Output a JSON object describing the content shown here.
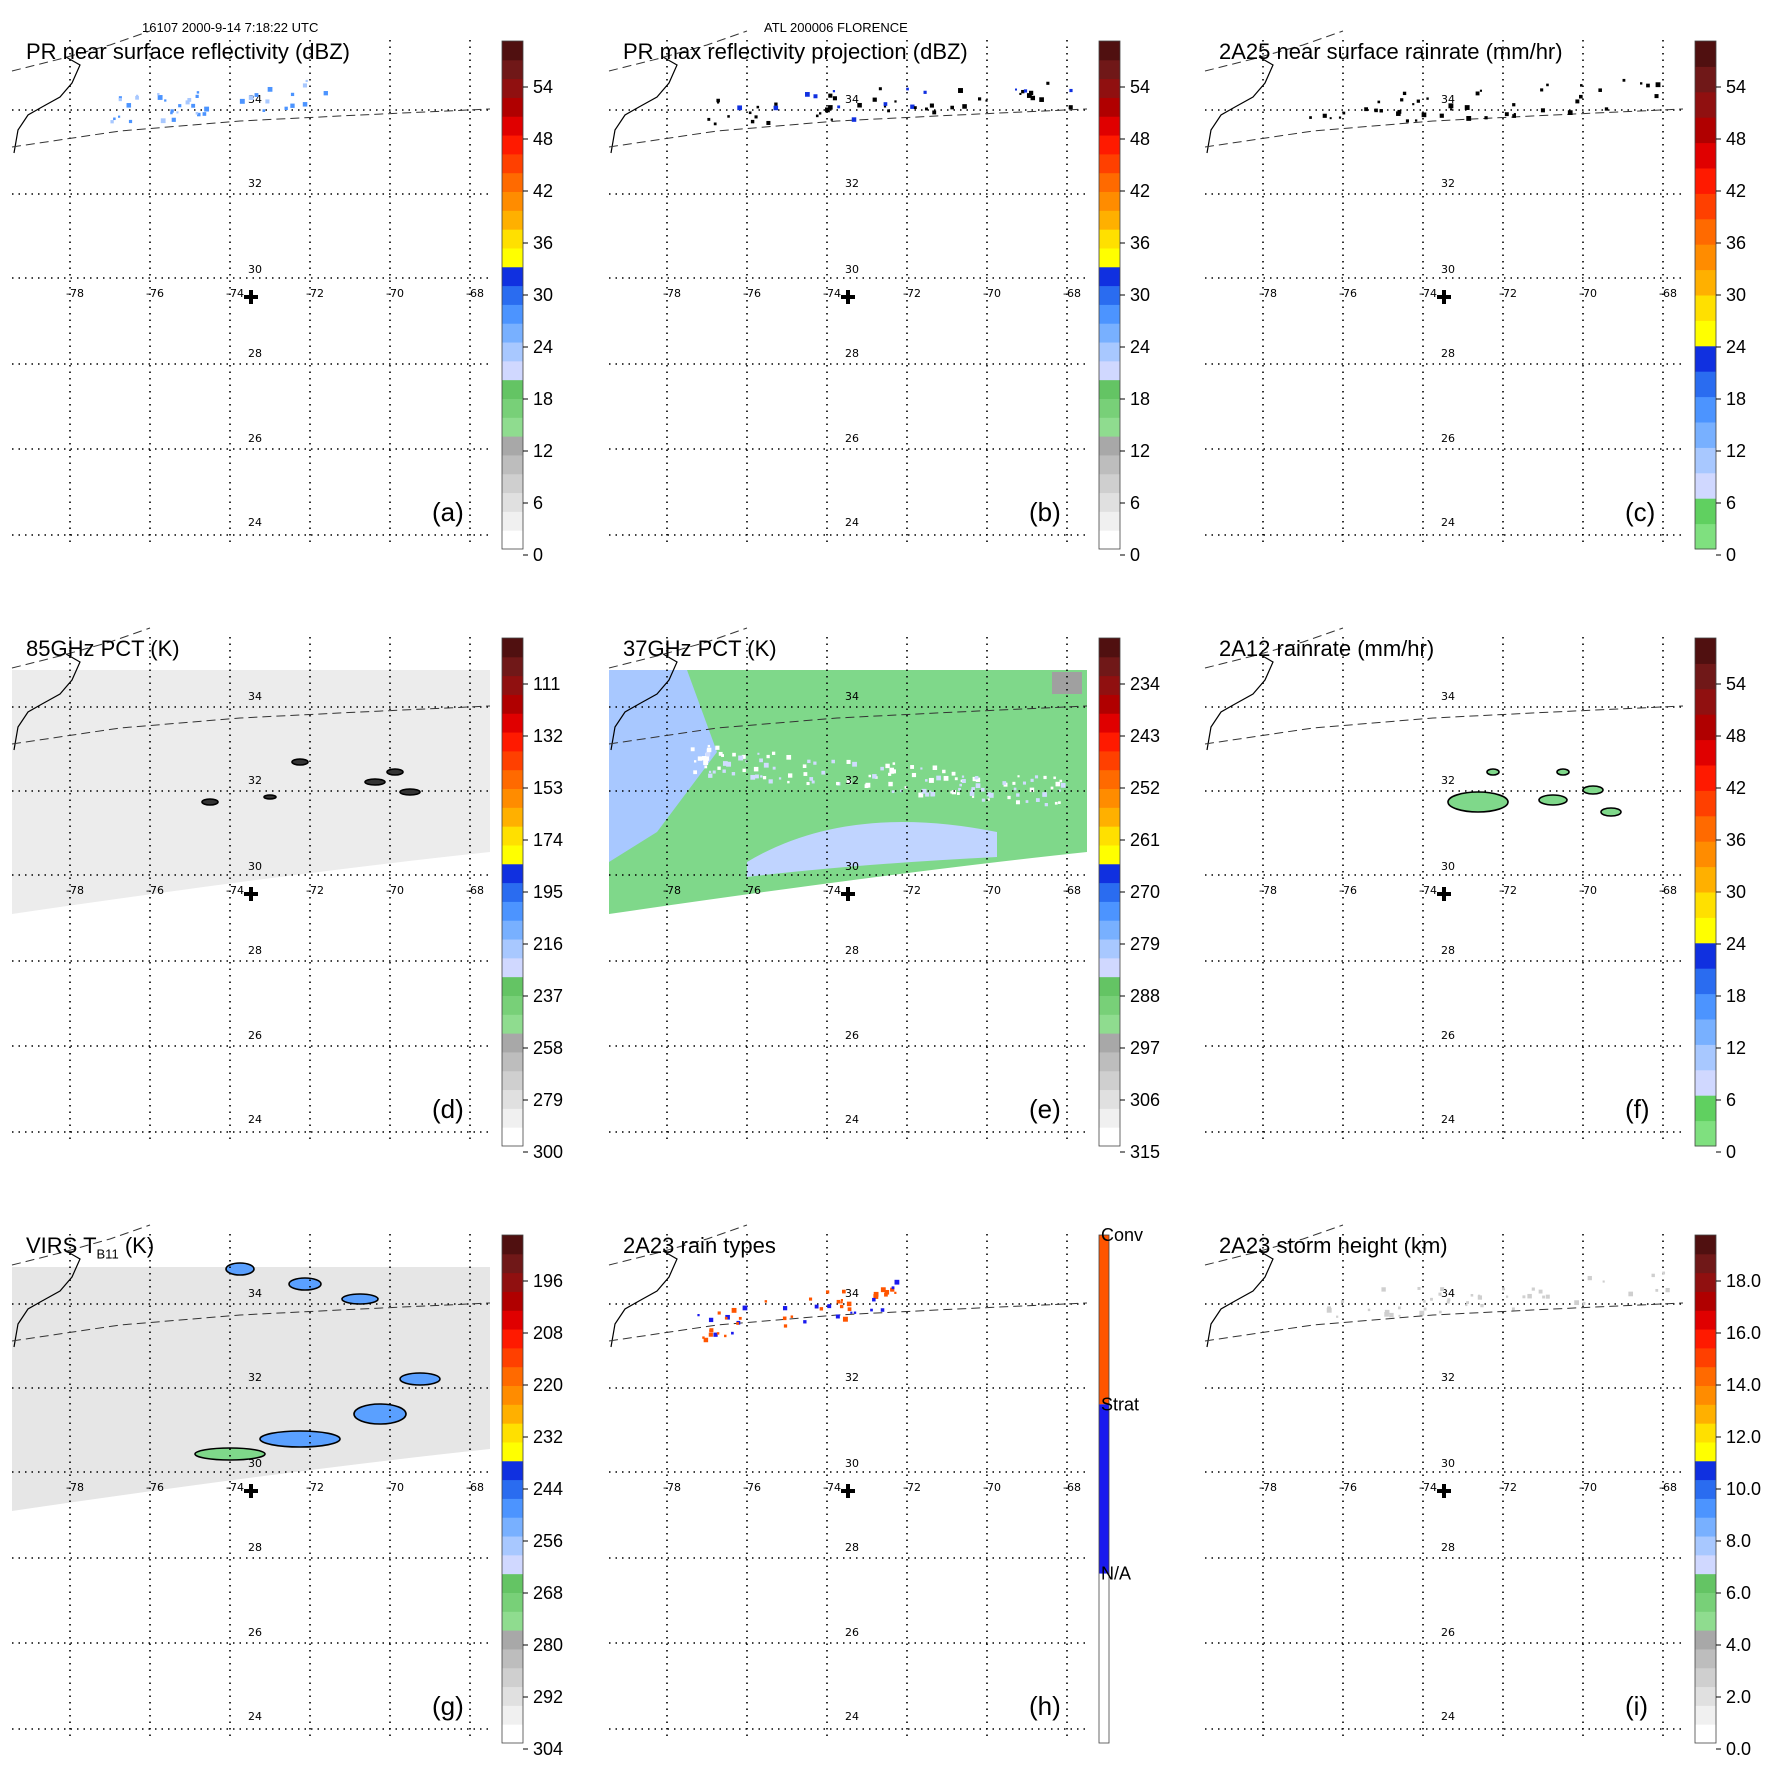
{
  "header": {
    "left": "16107 2000-9-14 7:18:22 UTC",
    "center": "ATL 200006 FLORENCE"
  },
  "map": {
    "lon_ticks": [
      "-78",
      "-76",
      "-74",
      "-72",
      "-70",
      "-68"
    ],
    "lat_ticks": [
      "34",
      "32",
      "30",
      "28",
      "26",
      "24"
    ],
    "center_marker": "plus-marker"
  },
  "chart_data": [
    {
      "type": "heatmap",
      "panel_id": "a",
      "title": "PR near surface reflectivity (dBZ)",
      "letter": "(a)",
      "colorbar_labels": [
        "54",
        "48",
        "42",
        "36",
        "30",
        "24",
        "18",
        "12",
        "6",
        "0"
      ],
      "colorbar_range": [
        0,
        60
      ]
    },
    {
      "type": "heatmap",
      "panel_id": "b",
      "title": "PR max reflectivity projection (dBZ)",
      "letter": "(b)",
      "colorbar_labels": [
        "54",
        "48",
        "42",
        "36",
        "30",
        "24",
        "18",
        "12",
        "6",
        "0"
      ],
      "colorbar_range": [
        0,
        60
      ]
    },
    {
      "type": "heatmap",
      "panel_id": "c",
      "title": "2A25 near surface rainrate (mm/hr)",
      "letter": "(c)",
      "colorbar_labels": [
        "54",
        "48",
        "42",
        "36",
        "30",
        "24",
        "18",
        "12",
        "6",
        "0"
      ],
      "colorbar_range": [
        0,
        60
      ]
    },
    {
      "type": "heatmap",
      "panel_id": "d",
      "title": "85GHz PCT (K)",
      "letter": "(d)",
      "colorbar_labels": [
        "111",
        "132",
        "153",
        "174",
        "195",
        "216",
        "237",
        "258",
        "279",
        "300"
      ],
      "colorbar_range": [
        90,
        300
      ]
    },
    {
      "type": "heatmap",
      "panel_id": "e",
      "title": "37GHz PCT (K)",
      "letter": "(e)",
      "colorbar_labels": [
        "234",
        "243",
        "252",
        "261",
        "270",
        "279",
        "288",
        "297",
        "306",
        "315"
      ],
      "colorbar_range": [
        225,
        315
      ]
    },
    {
      "type": "heatmap",
      "panel_id": "f",
      "title": "2A12 rainrate (mm/hr)",
      "letter": "(f)",
      "colorbar_labels": [
        "54",
        "48",
        "42",
        "36",
        "30",
        "24",
        "18",
        "12",
        "6",
        "0"
      ],
      "colorbar_range": [
        0,
        60
      ]
    },
    {
      "type": "heatmap",
      "panel_id": "g",
      "title_main": "VIRS T",
      "title_sub": "B11",
      "title_unit": "(K)",
      "letter": "(g)",
      "colorbar_labels": [
        "196",
        "208",
        "220",
        "232",
        "244",
        "256",
        "268",
        "280",
        "292",
        "304"
      ],
      "colorbar_range": [
        184,
        304
      ]
    },
    {
      "type": "heatmap",
      "panel_id": "h",
      "title": "2A23 rain types",
      "letter": "(h)",
      "categories": [
        "Conv",
        "Strat",
        "N/A"
      ]
    },
    {
      "type": "heatmap",
      "panel_id": "i",
      "title": "2A23 storm height (km)",
      "letter": "(i)",
      "colorbar_labels": [
        "18.0",
        "16.0",
        "14.0",
        "12.0",
        "10.0",
        "8.0",
        "6.0",
        "4.0",
        "2.0",
        "0.0"
      ],
      "colorbar_range": [
        0,
        20
      ]
    }
  ],
  "palettes": {
    "standard": [
      "#ffffff",
      "#f0f0f0",
      "#e0e0e0",
      "#cfcfcf",
      "#bdbdbd",
      "#a8a8a8",
      "#8fdc8f",
      "#78d078",
      "#64c464",
      "#d0d8ff",
      "#a8c8ff",
      "#78b0ff",
      "#4c94ff",
      "#2a6cf0",
      "#1030e0",
      "#ffff00",
      "#ffe000",
      "#ffb000",
      "#ff8c00",
      "#ff6a00",
      "#ff4000",
      "#ff1a00",
      "#e00000",
      "#b00000",
      "#901010",
      "#701818",
      "#501010"
    ],
    "rain": [
      "#7fe07f",
      "#60d060",
      "#d0d8ff",
      "#a8c8ff",
      "#78b0ff",
      "#4c94ff",
      "#2a6cf0",
      "#1030e0",
      "#ffff00",
      "#ffe000",
      "#ffb000",
      "#ff8c00",
      "#ff6a00",
      "#ff4000",
      "#ff1a00",
      "#e00000",
      "#b00000",
      "#901010",
      "#701818",
      "#501010"
    ],
    "types": [
      "#ff5500",
      "#1a1aee",
      "#ffffff"
    ]
  }
}
